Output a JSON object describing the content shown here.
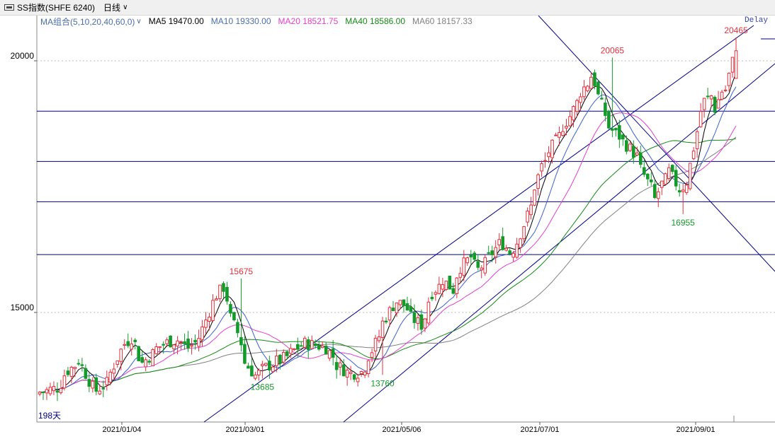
{
  "window": {
    "title": "SS指数(SHFE 6240)",
    "period_label": "日线"
  },
  "legend": {
    "group_label": "MA组合(5,10,20,40,60,0)",
    "items": [
      {
        "label": "MA5",
        "value": "19470.00",
        "color": "#000000"
      },
      {
        "label": "MA10",
        "value": "19330.00",
        "color": "#3a5fcd"
      },
      {
        "label": "MA20",
        "value": "18521.75",
        "color": "#e040d0"
      },
      {
        "label": "MA40",
        "value": "18586.00",
        "color": "#148a14"
      },
      {
        "label": "MA60",
        "value": "18157.33",
        "color": "#808080"
      }
    ]
  },
  "delay_label": "Delay",
  "bar_count_label": "198天",
  "colors": {
    "up": "#e0303c",
    "down": "#139b2a",
    "grid": "#000080",
    "hi_label": "#e0303c",
    "lo_label": "#139b2a"
  },
  "chart_data": {
    "type": "candlestick",
    "x_ticks": [
      "2021/01/04",
      "2021/03/01",
      "2021/05/06",
      "2021/07/01",
      "2021/09/01"
    ],
    "y_ticks": [
      15000,
      20000
    ],
    "ylim": [
      13000,
      20800
    ],
    "annotations": [
      {
        "label": "20465",
        "value": 20465,
        "kind": "high"
      },
      {
        "label": "20065",
        "value": 20065,
        "kind": "high"
      },
      {
        "label": "15675",
        "value": 15675,
        "kind": "high"
      },
      {
        "label": "16955",
        "value": 16955,
        "kind": "low"
      },
      {
        "label": "13685",
        "value": 13685,
        "kind": "low"
      },
      {
        "label": "13760",
        "value": 13760,
        "kind": "low"
      }
    ],
    "horizontal_levels": [
      19000,
      18000,
      17200,
      16150
    ]
  }
}
